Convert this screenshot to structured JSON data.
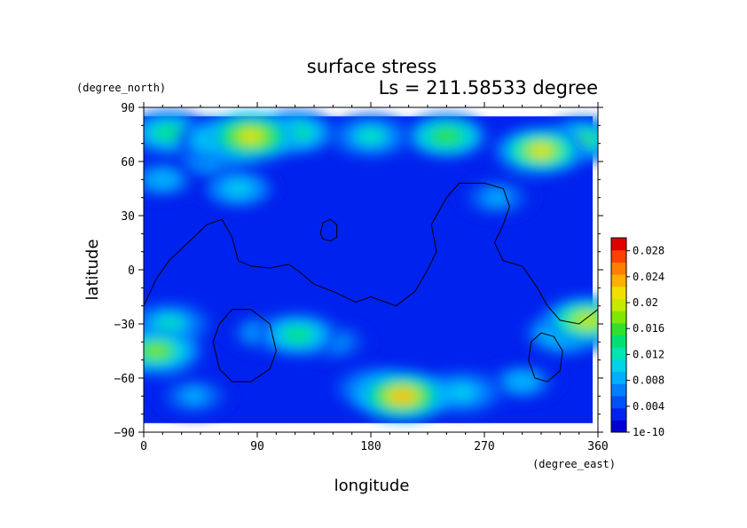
{
  "chart_data": {
    "type": "heatmap",
    "title": "surface stress",
    "subtitle": "Ls = 211.58533 degree",
    "xlabel": "longitude",
    "ylabel": "latitude",
    "xunits": "(degree_east)",
    "yunits": "(degree_north)",
    "xlim": [
      0,
      360
    ],
    "ylim": [
      -90,
      90
    ],
    "xticks": [
      "0",
      "90",
      "180",
      "270",
      "360"
    ],
    "yticks": [
      "90",
      "60",
      "30",
      "0",
      "−30",
      "−60",
      "−90"
    ],
    "xtick_values": [
      0,
      90,
      180,
      270,
      360
    ],
    "ytick_values": [
      90,
      60,
      30,
      0,
      -30,
      -60,
      -90
    ],
    "data_lat_range": [
      -85,
      85
    ],
    "colorbar": {
      "range": [
        0,
        0.03
      ],
      "ticks": [
        "1e-10",
        "0.004",
        "0.008",
        "0.012",
        "0.016",
        "0.02",
        "0.024",
        "0.028"
      ],
      "tick_values": [
        0,
        0.004,
        0.008,
        0.012,
        0.016,
        0.02,
        0.024,
        0.028
      ],
      "colors": [
        "#0000d6",
        "#0022ee",
        "#0050f5",
        "#0080ff",
        "#00b0ff",
        "#00d2e8",
        "#00e6b0",
        "#00e070",
        "#30e030",
        "#80e800",
        "#c8e800",
        "#f0e000",
        "#ffb000",
        "#ff8000",
        "#ff4000",
        "#e00000"
      ]
    },
    "hotspots": [
      {
        "lon": 85,
        "lat": 74,
        "value": 0.022
      },
      {
        "lon": 60,
        "lat": 72,
        "value": 0.015
      },
      {
        "lon": 120,
        "lat": 76,
        "value": 0.014
      },
      {
        "lon": 180,
        "lat": 74,
        "value": 0.012
      },
      {
        "lon": 240,
        "lat": 74,
        "value": 0.016
      },
      {
        "lon": 20,
        "lat": 76,
        "value": 0.014
      },
      {
        "lon": 315,
        "lat": 66,
        "value": 0.021
      },
      {
        "lon": 348,
        "lat": 72,
        "value": 0.015
      },
      {
        "lon": 55,
        "lat": 62,
        "value": 0.01
      },
      {
        "lon": 75,
        "lat": 45,
        "value": 0.01
      },
      {
        "lon": 15,
        "lat": 50,
        "value": 0.009
      },
      {
        "lon": 10,
        "lat": -45,
        "value": 0.018
      },
      {
        "lon": 20,
        "lat": -30,
        "value": 0.012
      },
      {
        "lon": 122,
        "lat": -36,
        "value": 0.014
      },
      {
        "lon": 95,
        "lat": -35,
        "value": 0.009
      },
      {
        "lon": 205,
        "lat": -70,
        "value": 0.024
      },
      {
        "lon": 185,
        "lat": -66,
        "value": 0.012
      },
      {
        "lon": 252,
        "lat": -68,
        "value": 0.011
      },
      {
        "lon": 352,
        "lat": -28,
        "value": 0.02
      },
      {
        "lon": 335,
        "lat": -35,
        "value": 0.013
      },
      {
        "lon": 150,
        "lat": -40,
        "value": 0.008
      },
      {
        "lon": 300,
        "lat": -62,
        "value": 0.009
      },
      {
        "lon": 40,
        "lat": -70,
        "value": 0.008
      },
      {
        "lon": 280,
        "lat": 40,
        "value": 0.008
      }
    ],
    "contours": [
      {
        "name": "continent-outline",
        "points": [
          [
            0,
            -20
          ],
          [
            10,
            -5
          ],
          [
            20,
            5
          ],
          [
            35,
            15
          ],
          [
            50,
            25
          ],
          [
            62,
            28
          ],
          [
            70,
            18
          ],
          [
            75,
            5
          ],
          [
            85,
            2
          ],
          [
            100,
            1
          ],
          [
            115,
            3
          ],
          [
            125,
            -2
          ],
          [
            135,
            -8
          ],
          [
            150,
            -12
          ],
          [
            168,
            -18
          ],
          [
            180,
            -15
          ],
          [
            200,
            -20
          ],
          [
            215,
            -12
          ],
          [
            225,
            0
          ],
          [
            232,
            10
          ],
          [
            228,
            25
          ],
          [
            240,
            40
          ],
          [
            250,
            48
          ],
          [
            270,
            48
          ],
          [
            285,
            45
          ],
          [
            290,
            35
          ],
          [
            285,
            25
          ],
          [
            278,
            15
          ],
          [
            285,
            5
          ],
          [
            300,
            2
          ],
          [
            312,
            -10
          ],
          [
            320,
            -20
          ],
          [
            330,
            -28
          ],
          [
            345,
            -30
          ],
          [
            360,
            -22
          ]
        ]
      },
      {
        "name": "basin-1",
        "points": [
          [
            55,
            -40
          ],
          [
            60,
            -30
          ],
          [
            70,
            -22
          ],
          [
            85,
            -22
          ],
          [
            100,
            -30
          ],
          [
            105,
            -45
          ],
          [
            100,
            -55
          ],
          [
            85,
            -62
          ],
          [
            70,
            -62
          ],
          [
            60,
            -55
          ],
          [
            55,
            -40
          ]
        ]
      },
      {
        "name": "basin-2",
        "points": [
          [
            140,
            20
          ],
          [
            142,
            26
          ],
          [
            148,
            28
          ],
          [
            153,
            25
          ],
          [
            153,
            18
          ],
          [
            148,
            16
          ],
          [
            142,
            17
          ],
          [
            140,
            20
          ]
        ]
      },
      {
        "name": "basin-3",
        "points": [
          [
            305,
            -50
          ],
          [
            307,
            -40
          ],
          [
            315,
            -35
          ],
          [
            325,
            -37
          ],
          [
            332,
            -45
          ],
          [
            330,
            -56
          ],
          [
            320,
            -62
          ],
          [
            310,
            -60
          ],
          [
            305,
            -50
          ]
        ]
      }
    ]
  }
}
